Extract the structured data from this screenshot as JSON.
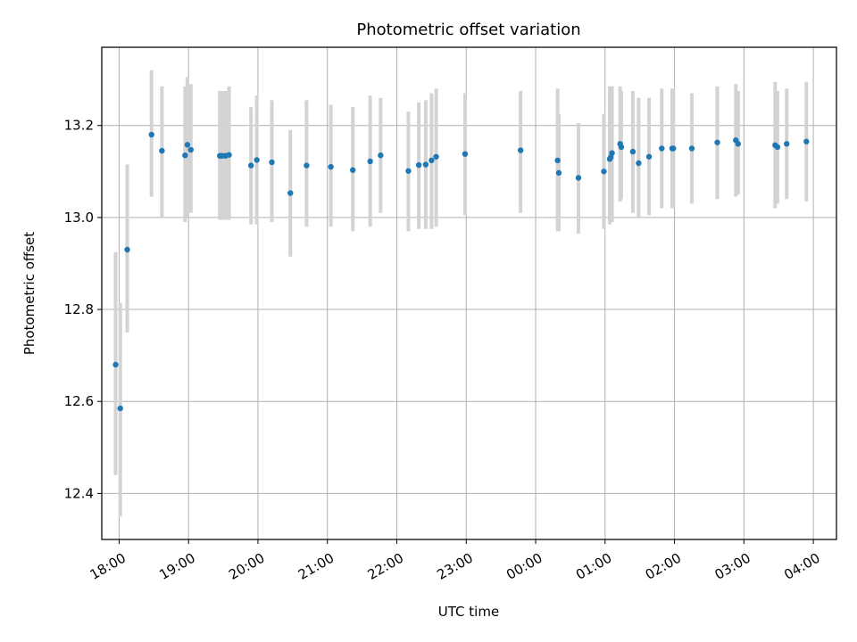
{
  "chart_data": {
    "type": "scatter",
    "title": "Photometric offset variation",
    "xlabel": "UTC time",
    "ylabel": "Photometric offset",
    "xlim": [
      "17:45",
      "04:20"
    ],
    "ylim": [
      12.3,
      13.37
    ],
    "grid": true,
    "x_ticks": [
      "18:00",
      "19:00",
      "20:00",
      "21:00",
      "22:00",
      "23:00",
      "00:00",
      "01:00",
      "02:00",
      "03:00",
      "04:00"
    ],
    "y_ticks": [
      "12.4",
      "12.6",
      "12.8",
      "13.0",
      "13.2"
    ],
    "colors": {
      "marker": "#1f77b4",
      "errorbar": "#d3d3d3",
      "grid": "#b0b0b0"
    },
    "series": [
      {
        "x": [
          "17:57",
          "18:01",
          "18:07",
          "18:28",
          "18:37",
          "18:57",
          "18:59",
          "19:02",
          "19:27",
          "19:29",
          "19:32",
          "19:35",
          "19:54",
          "19:59",
          "20:12",
          "20:28",
          "20:42",
          "21:03",
          "21:22",
          "21:37",
          "21:46",
          "22:10",
          "22:19",
          "22:25",
          "22:30",
          "22:34",
          "22:59",
          "23:47",
          "00:19",
          "00:20",
          "00:37",
          "00:59",
          "01:04",
          "01:05",
          "01:06",
          "01:13",
          "01:14",
          "01:24",
          "01:29",
          "01:38",
          "01:49",
          "01:58",
          "01:59",
          "02:15",
          "02:37",
          "02:53",
          "02:55",
          "03:27",
          "03:29",
          "03:37",
          "03:54"
        ],
        "y": [
          12.68,
          12.585,
          12.93,
          13.18,
          13.145,
          13.135,
          13.158,
          13.147,
          13.134,
          13.134,
          13.134,
          13.136,
          13.113,
          13.125,
          13.12,
          13.053,
          13.113,
          13.11,
          13.103,
          13.122,
          13.135,
          13.101,
          13.114,
          13.115,
          13.124,
          13.132,
          13.138,
          13.146,
          13.124,
          13.097,
          13.086,
          13.1,
          13.127,
          13.131,
          13.14,
          13.16,
          13.153,
          13.143,
          13.118,
          13.132,
          13.15,
          13.15,
          13.15,
          13.15,
          13.163,
          13.168,
          13.16,
          13.157,
          13.153,
          13.16,
          13.165
        ],
        "err_low": [
          12.44,
          12.35,
          12.75,
          13.045,
          13.0,
          12.99,
          13.0,
          13.01,
          12.995,
          12.995,
          12.995,
          12.995,
          12.985,
          12.985,
          12.99,
          12.915,
          12.98,
          12.98,
          12.97,
          12.98,
          13.01,
          12.97,
          12.975,
          12.975,
          12.975,
          12.98,
          13.005,
          13.01,
          12.97,
          12.97,
          12.965,
          12.975,
          12.985,
          12.99,
          12.99,
          13.035,
          13.04,
          13.01,
          13.0,
          13.005,
          13.02,
          13.02,
          13.02,
          13.03,
          13.04,
          13.045,
          13.05,
          13.02,
          13.03,
          13.04,
          13.035
        ],
        "err_high": [
          12.925,
          12.815,
          13.115,
          13.32,
          13.285,
          13.285,
          13.305,
          13.29,
          13.275,
          13.275,
          13.275,
          13.285,
          13.24,
          13.265,
          13.255,
          13.19,
          13.255,
          13.245,
          13.24,
          13.265,
          13.26,
          13.23,
          13.25,
          13.255,
          13.27,
          13.28,
          13.27,
          13.275,
          13.28,
          13.225,
          13.205,
          13.225,
          13.285,
          13.285,
          13.285,
          13.285,
          13.275,
          13.275,
          13.26,
          13.26,
          13.28,
          13.28,
          13.28,
          13.27,
          13.285,
          13.29,
          13.275,
          13.295,
          13.275,
          13.28,
          13.295
        ]
      }
    ]
  }
}
